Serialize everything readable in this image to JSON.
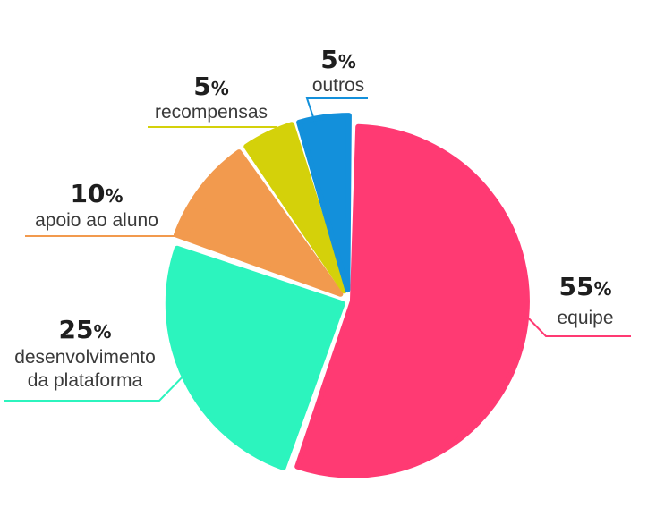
{
  "chart_data": {
    "type": "pie",
    "slices": [
      {
        "label": "equipe",
        "value": 55,
        "value_text": "55",
        "unit": "%",
        "color": "#FF3A73"
      },
      {
        "label": "desenvolvimento da plataforma",
        "lines": [
          "desenvolvimento",
          "da plataforma"
        ],
        "value": 25,
        "value_text": "25",
        "unit": "%",
        "color": "#2CF4BE"
      },
      {
        "label": "apoio ao aluno",
        "value": 10,
        "value_text": "10",
        "unit": "%",
        "color": "#F29A4E"
      },
      {
        "label": "recompensas",
        "value": 5,
        "value_text": "5",
        "unit": "%",
        "color": "#D4D10A"
      },
      {
        "label": "outros",
        "value": 5,
        "value_text": "5",
        "unit": "%",
        "color": "#1390DB"
      }
    ],
    "legend": "none",
    "labels": "outside with leader lines"
  }
}
